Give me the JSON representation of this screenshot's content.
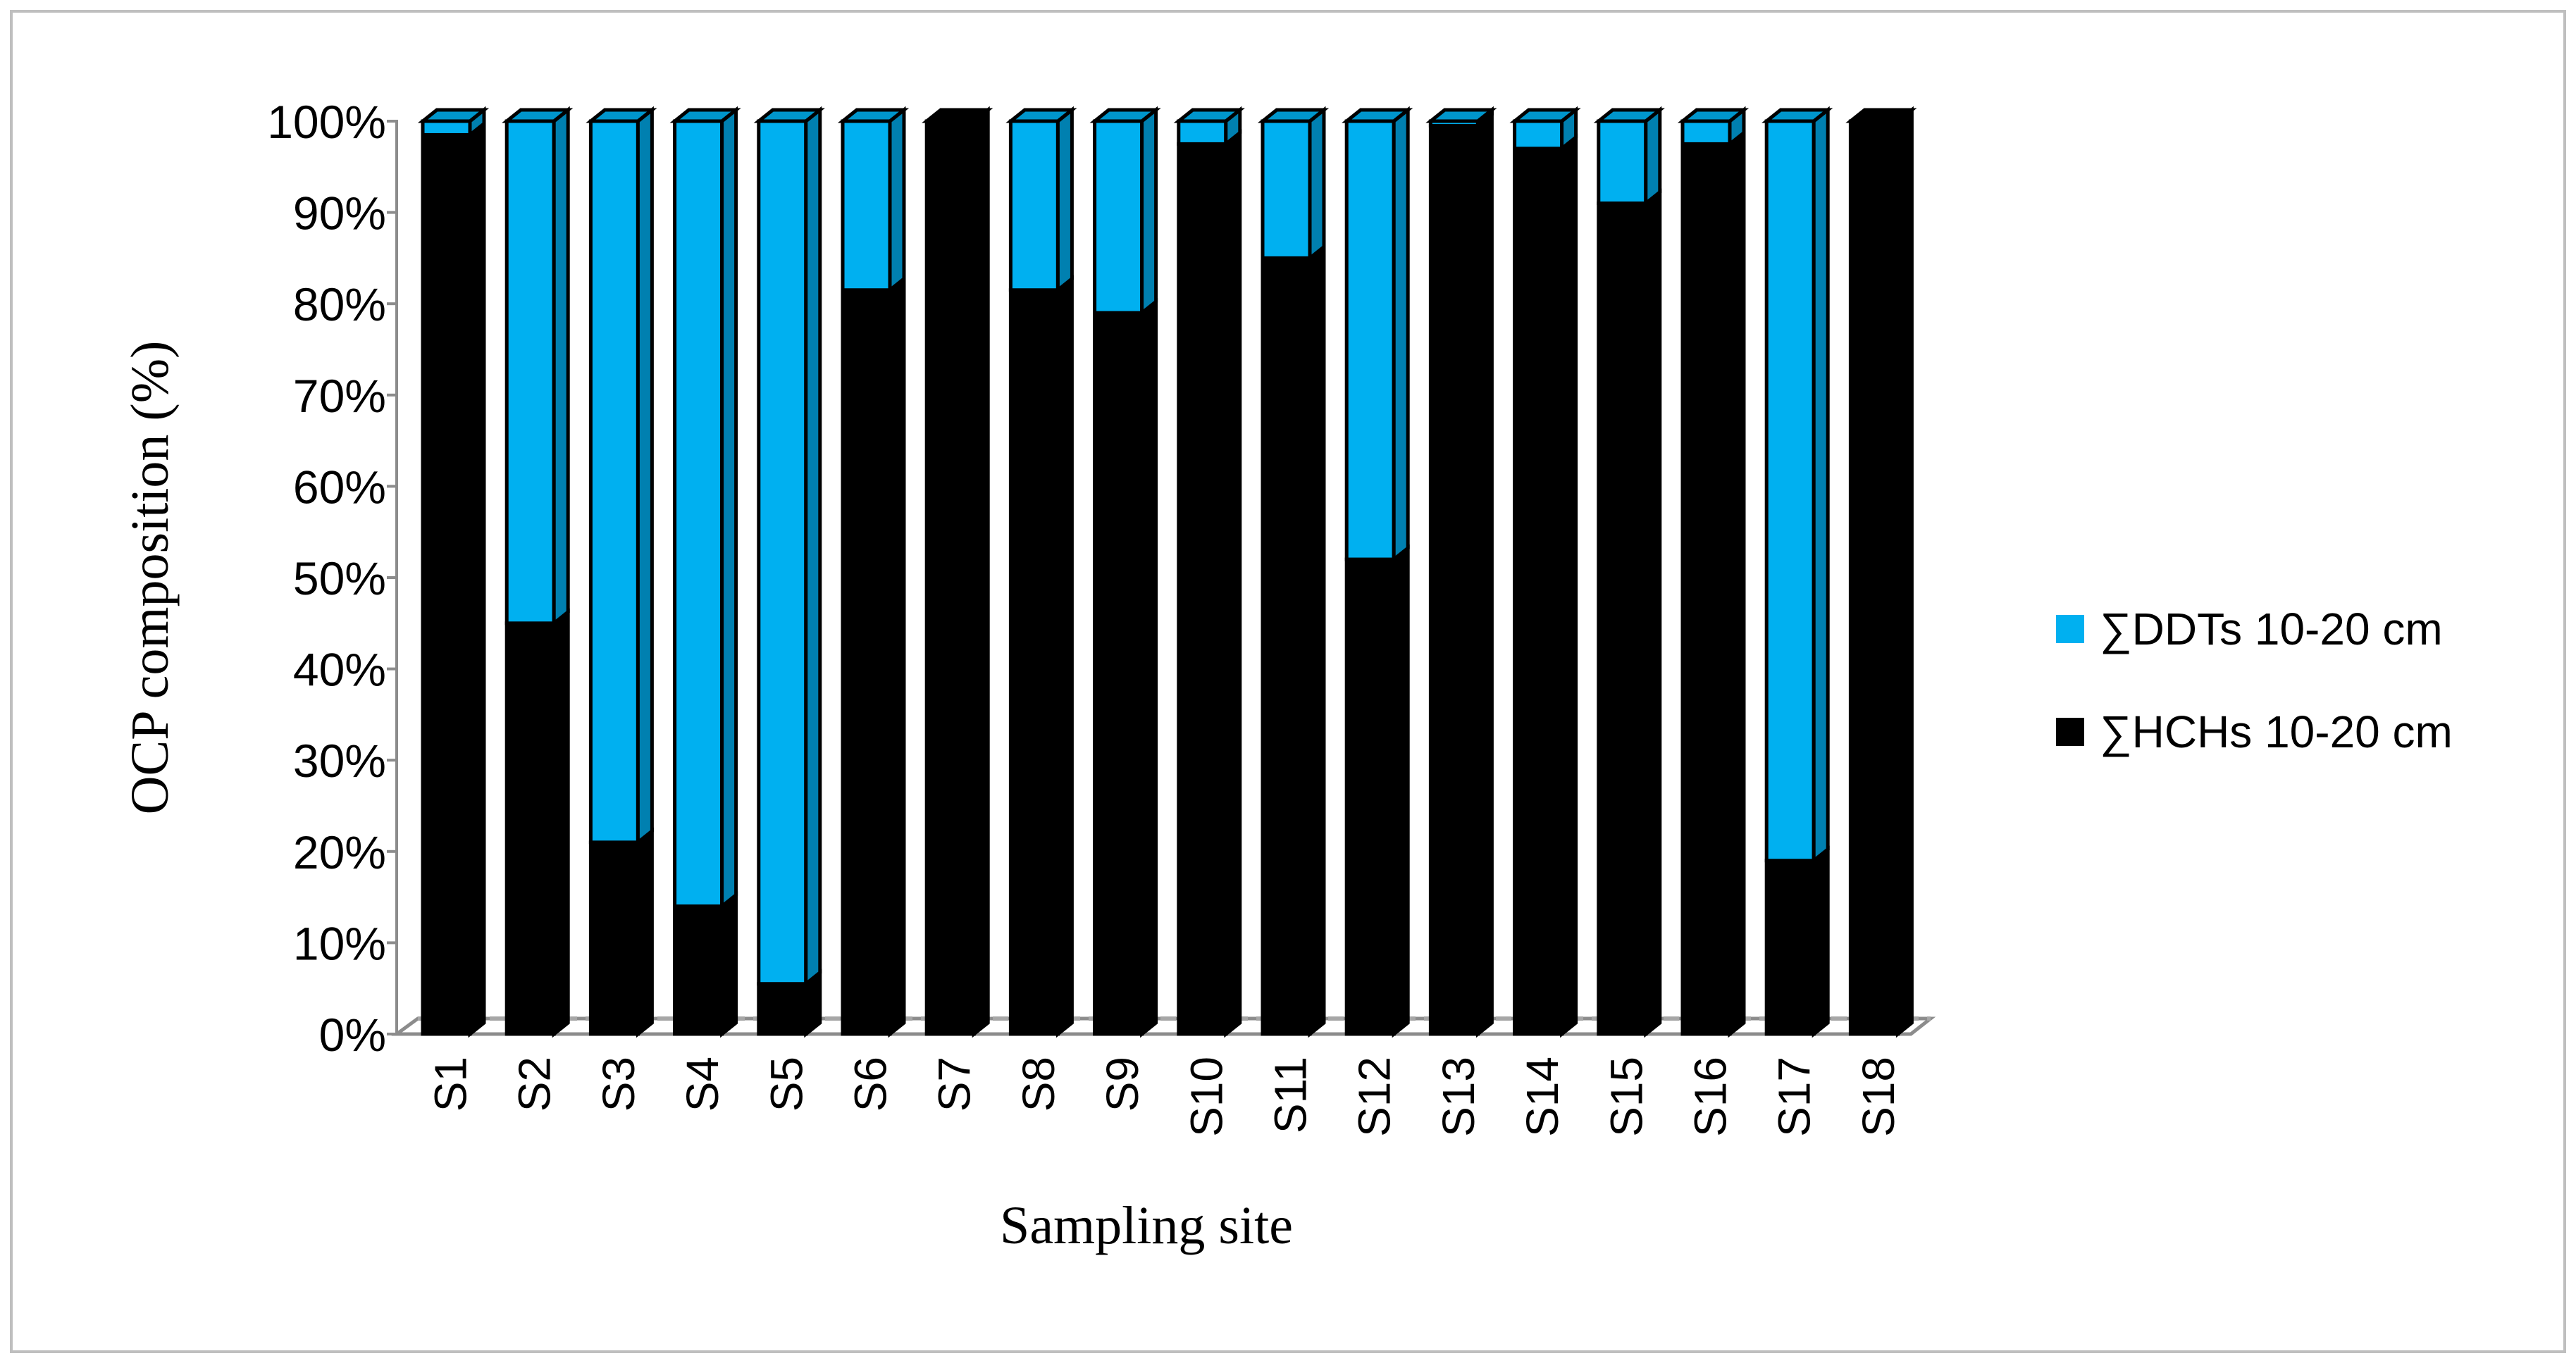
{
  "chart_data": {
    "type": "bar",
    "stacked": true,
    "percent_stacked": true,
    "three_d": true,
    "title": "",
    "xlabel": "Sampling site",
    "ylabel": "OCP composition (%)",
    "ylim": [
      0,
      100
    ],
    "y_ticks": [
      "0%",
      "10%",
      "20%",
      "30%",
      "40%",
      "50%",
      "60%",
      "70%",
      "80%",
      "90%",
      "100%"
    ],
    "grid": false,
    "legend_position": "right",
    "categories": [
      "S1",
      "S2",
      "S3",
      "S4",
      "S5",
      "S6",
      "S7",
      "S8",
      "S9",
      "S10",
      "S11",
      "S12",
      "S13",
      "S14",
      "S15",
      "S16",
      "S17",
      "S18"
    ],
    "series": [
      {
        "name": "∑HCHs 10-20 cm",
        "color": "#000000",
        "values": [
          98.5,
          45,
          21,
          14,
          5.5,
          81.5,
          100,
          81.5,
          79,
          97.5,
          85,
          52,
          99.5,
          97,
          91,
          97.5,
          19,
          100
        ]
      },
      {
        "name": "∑DDTs 10-20 cm",
        "color": "#00b0f0",
        "values": [
          1.5,
          55,
          79,
          86,
          94.5,
          18.5,
          0,
          18.5,
          21,
          2.5,
          15,
          48,
          0.5,
          3,
          9,
          2.5,
          81,
          0
        ]
      }
    ],
    "legend_order": [
      "∑DDTs 10-20 cm",
      "∑HCHs 10-20 cm"
    ]
  }
}
